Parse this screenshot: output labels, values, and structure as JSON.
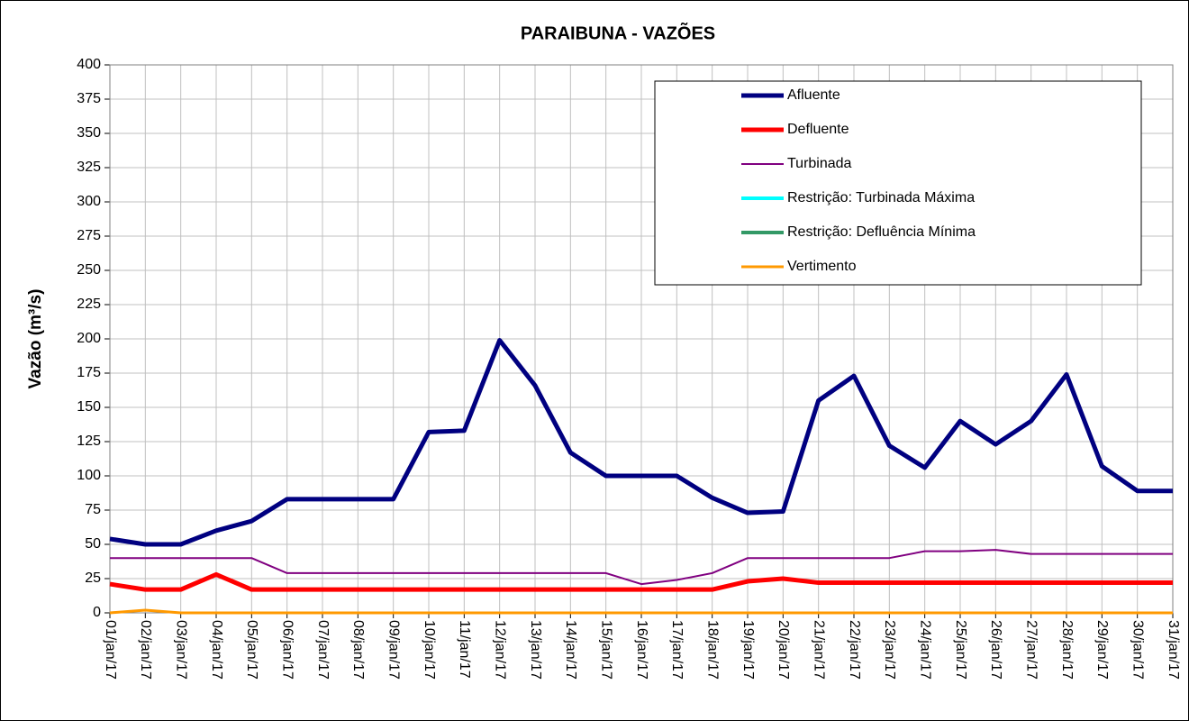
{
  "chart_data": {
    "type": "line",
    "title": "PARAIBUNA - VAZÕES",
    "y_label": "Vazão (m³/s)",
    "categories": [
      "01/jan/17",
      "02/jan/17",
      "03/jan/17",
      "04/jan/17",
      "05/jan/17",
      "06/jan/17",
      "07/jan/17",
      "08/jan/17",
      "09/jan/17",
      "10/jan/17",
      "11/jan/17",
      "12/jan/17",
      "13/jan/17",
      "14/jan/17",
      "15/jan/17",
      "16/jan/17",
      "17/jan/17",
      "18/jan/17",
      "19/jan/17",
      "20/jan/17",
      "21/jan/17",
      "22/jan/17",
      "23/jan/17",
      "24/jan/17",
      "25/jan/17",
      "26/jan/17",
      "27/jan/17",
      "28/jan/17",
      "29/jan/17",
      "30/jan/17",
      "31/jan/17"
    ],
    "series": [
      {
        "name": "Afluente",
        "color": "#000080",
        "width": 5,
        "values": [
          54,
          50,
          50,
          60,
          67,
          83,
          83,
          83,
          83,
          132,
          133,
          199,
          166,
          117,
          100,
          100,
          100,
          84,
          73,
          74,
          155,
          173,
          122,
          106,
          140,
          123,
          140,
          174,
          107,
          89,
          89
        ]
      },
      {
        "name": "Defluente",
        "color": "#ff0000",
        "width": 5,
        "values": [
          21,
          17,
          17,
          28,
          17,
          17,
          17,
          17,
          17,
          17,
          17,
          17,
          17,
          17,
          17,
          17,
          17,
          17,
          23,
          25,
          22,
          22,
          22,
          22,
          22,
          22,
          22,
          22,
          22,
          22,
          22
        ]
      },
      {
        "name": "Turbinada",
        "color": "#800080",
        "width": 2,
        "values": [
          40,
          40,
          40,
          40,
          40,
          29,
          29,
          29,
          29,
          29,
          29,
          29,
          29,
          29,
          29,
          21,
          24,
          29,
          40,
          40,
          40,
          40,
          40,
          45,
          45,
          46,
          43,
          43,
          43,
          43,
          43
        ]
      },
      {
        "name": "Restrição: Turbinada Máxima",
        "color": "#00ffff",
        "width": 4,
        "values": [
          null,
          null,
          null,
          null,
          null,
          null,
          null,
          null,
          null,
          null,
          null,
          null,
          null,
          null,
          null,
          null,
          null,
          null,
          null,
          null,
          null,
          null,
          null,
          null,
          null,
          null,
          null,
          null,
          null,
          null,
          null
        ]
      },
      {
        "name": "Restrição: Defluência Mínima",
        "color": "#339966",
        "width": 4,
        "values": [
          null,
          null,
          null,
          null,
          null,
          null,
          null,
          null,
          null,
          null,
          null,
          null,
          null,
          null,
          null,
          null,
          null,
          null,
          null,
          null,
          null,
          null,
          null,
          null,
          null,
          null,
          null,
          null,
          null,
          null,
          null
        ]
      },
      {
        "name": "Vertimento",
        "color": "#ff9900",
        "width": 3,
        "values": [
          0,
          2,
          0,
          0,
          0,
          0,
          0,
          0,
          0,
          0,
          0,
          0,
          0,
          0,
          0,
          0,
          0,
          0,
          0,
          0,
          0,
          0,
          0,
          0,
          0,
          0,
          0,
          0,
          0,
          0,
          0
        ]
      }
    ],
    "ylim": [
      0,
      400
    ],
    "yticks": [
      0,
      25,
      50,
      75,
      100,
      125,
      150,
      175,
      200,
      225,
      250,
      275,
      300,
      325,
      350,
      375,
      400
    ],
    "grid": true
  }
}
